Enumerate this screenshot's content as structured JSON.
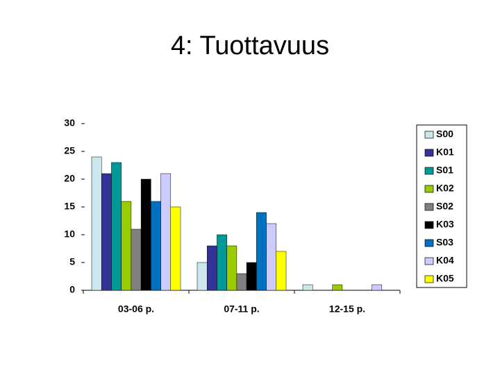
{
  "chart_data": {
    "type": "bar",
    "title": "4: Tuottavuus",
    "categories": [
      "03-06 p.",
      "07-11 p.",
      "12-15 p."
    ],
    "series": [
      {
        "name": "S00",
        "color": "#cce8ee",
        "values": [
          24,
          5,
          1
        ]
      },
      {
        "name": "K01",
        "color": "#333399",
        "values": [
          21,
          8,
          0
        ]
      },
      {
        "name": "S01",
        "color": "#009999",
        "values": [
          23,
          10,
          0
        ]
      },
      {
        "name": "K02",
        "color": "#99cc00",
        "values": [
          16,
          8,
          1
        ]
      },
      {
        "name": "S02",
        "color": "#808080",
        "values": [
          11,
          3,
          0
        ]
      },
      {
        "name": "K03",
        "color": "#000000",
        "values": [
          20,
          5,
          0
        ]
      },
      {
        "name": "S03",
        "color": "#0070c0",
        "values": [
          16,
          14,
          0
        ]
      },
      {
        "name": "K04",
        "color": "#ccccff",
        "values": [
          21,
          12,
          1
        ]
      },
      {
        "name": "K05",
        "color": "#ffff00",
        "values": [
          15,
          7,
          0
        ]
      }
    ],
    "ylim": [
      0,
      30
    ],
    "yticks": [
      0,
      5,
      10,
      15,
      20,
      25,
      30
    ],
    "legend": "right"
  }
}
